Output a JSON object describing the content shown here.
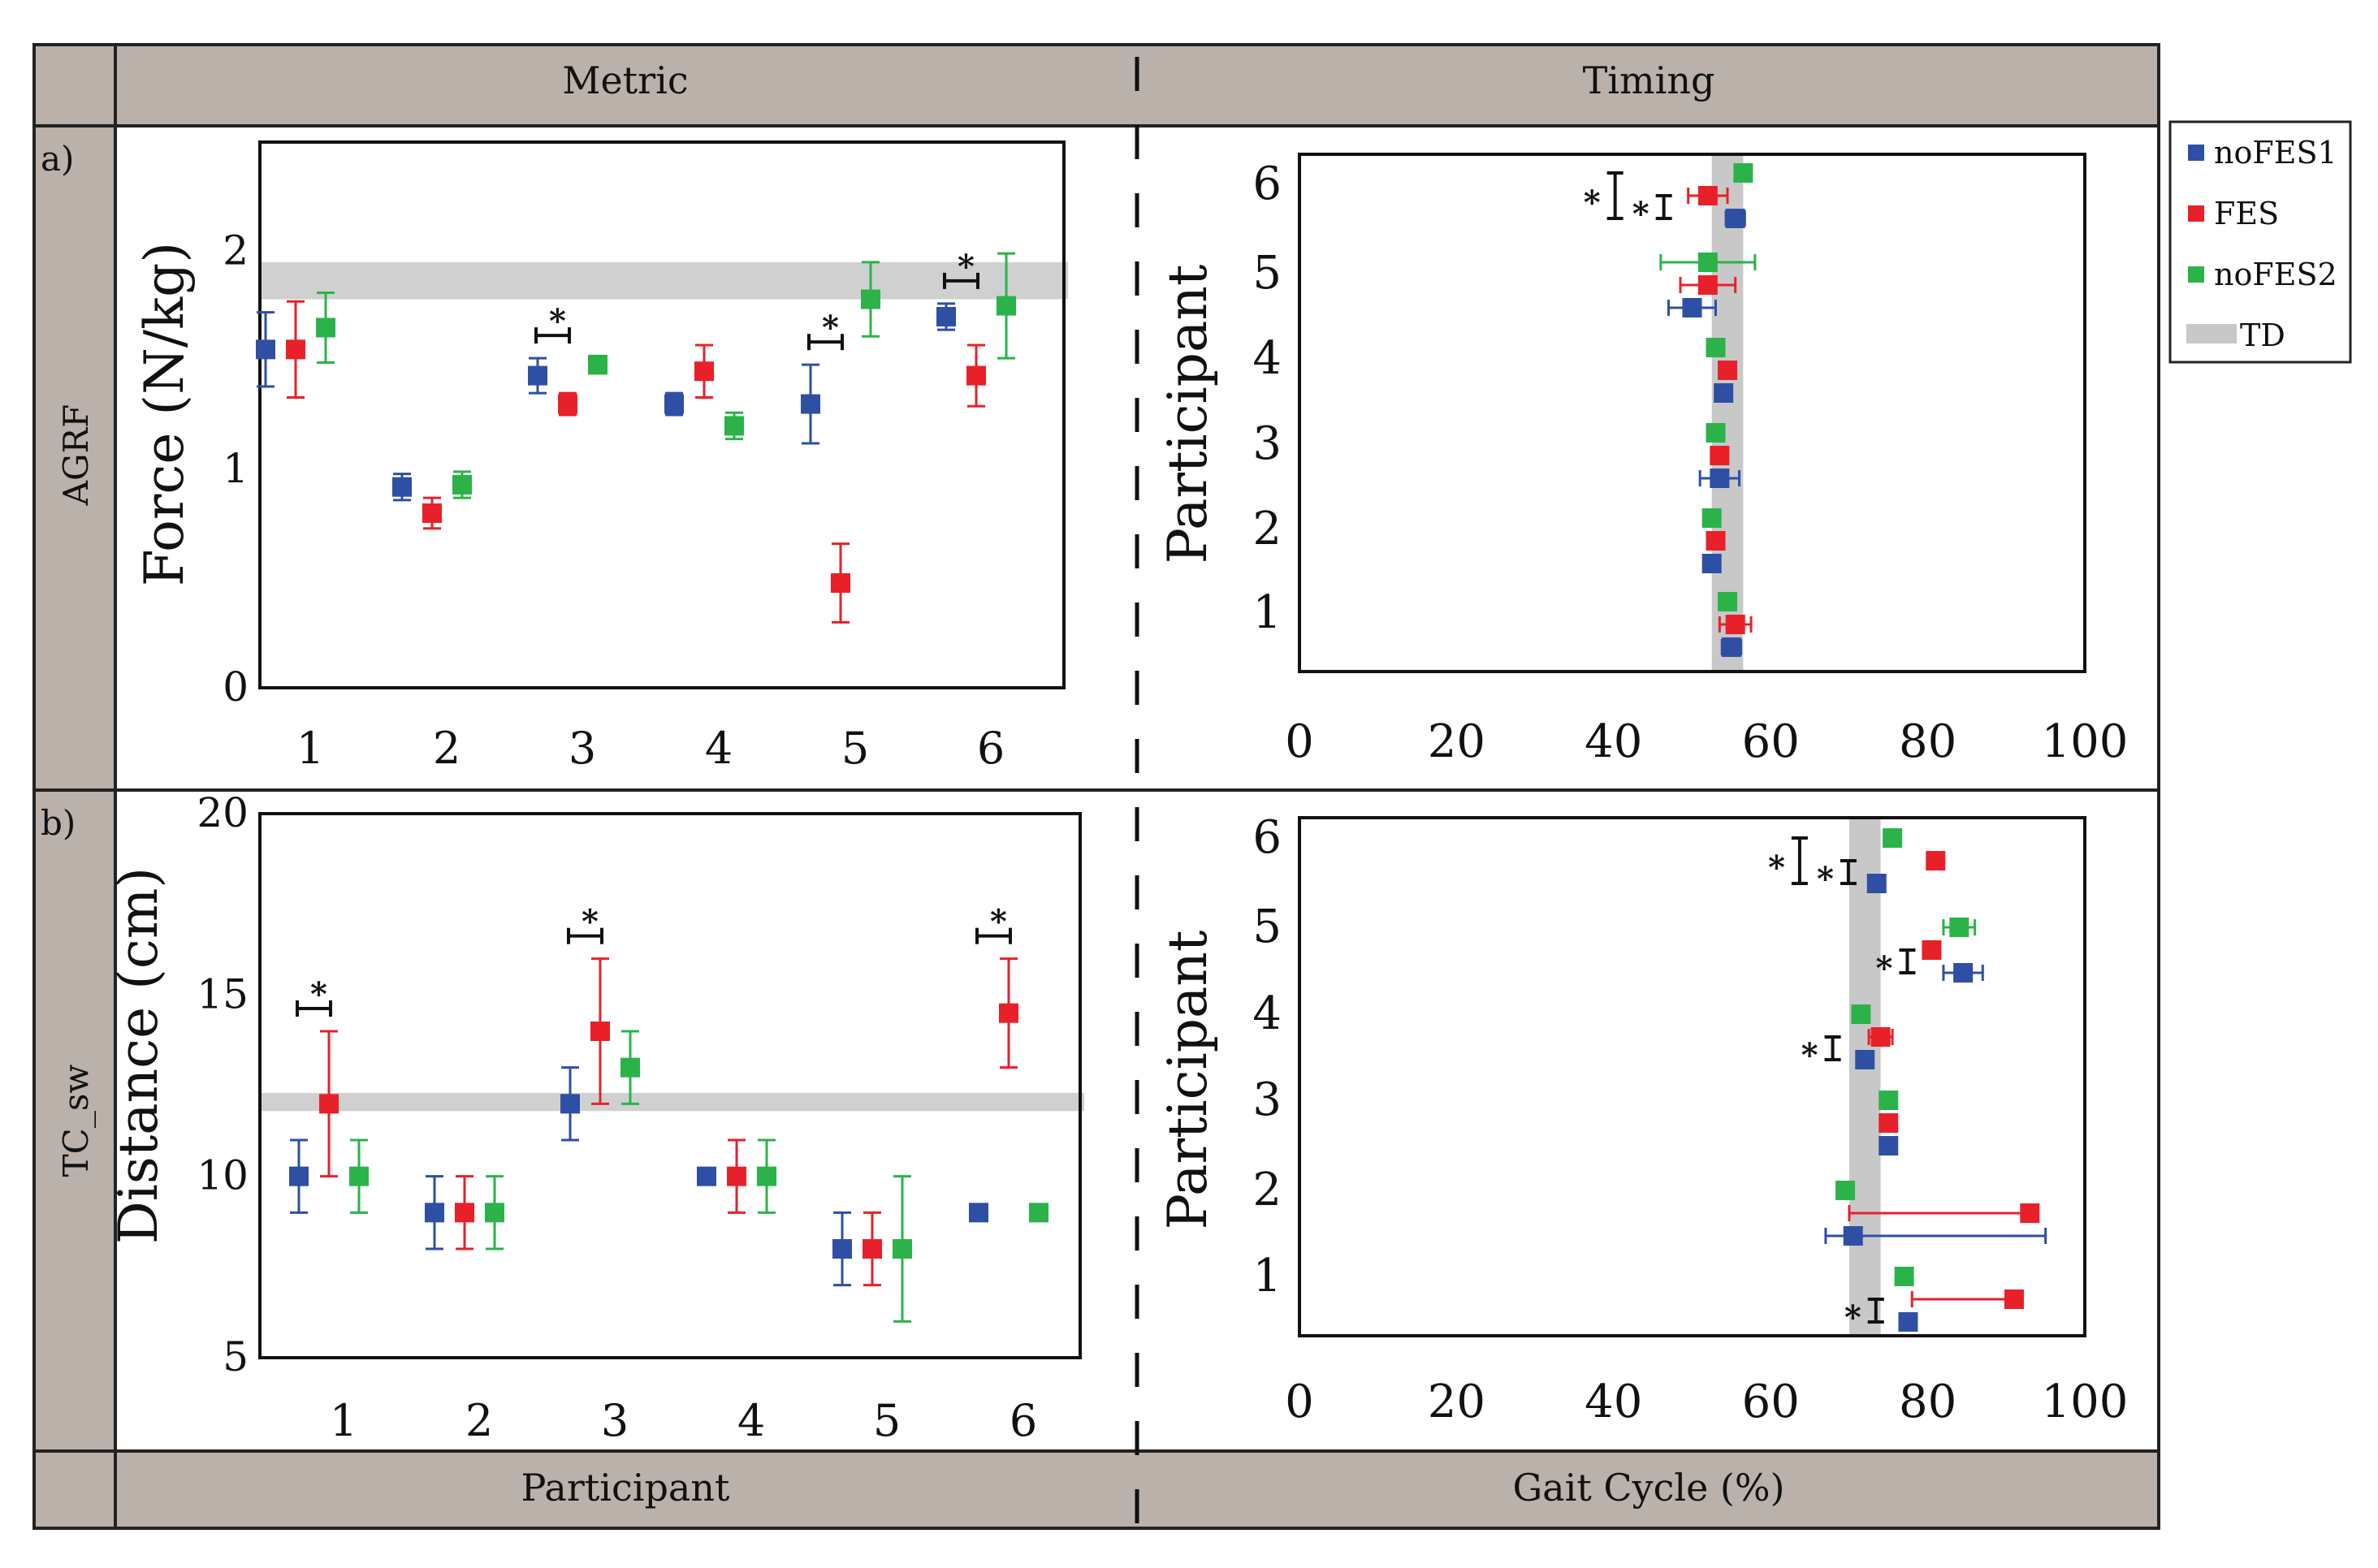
{
  "header": {
    "col1": "Metric",
    "col2": "Timing",
    "bottom1": "Participant",
    "bottom2": "Gait Cycle (%)"
  },
  "rows": {
    "a_label": "a)",
    "a_name": "AGRF",
    "b_label": "b)",
    "b_name": "TC_sw"
  },
  "legend": {
    "items": [
      {
        "name": "noFES1",
        "color": "#2e4fa3"
      },
      {
        "name": "FES",
        "color": "#e8202a"
      },
      {
        "name": "noFES2",
        "color": "#2bb34a"
      },
      {
        "name": "TD",
        "color": "#c8c8c8"
      }
    ]
  },
  "chart_data": [
    {
      "id": "a_metric",
      "type": "scatter",
      "ylabel": "Force (N/kg)",
      "categories": [
        "1",
        "2",
        "3",
        "4",
        "5",
        "6"
      ],
      "ylim": [
        0,
        2.5
      ],
      "yticks": [
        "0",
        "1",
        "2"
      ],
      "td_band": [
        1.78,
        1.95
      ],
      "series": [
        {
          "name": "noFES1",
          "values": [
            1.55,
            0.92,
            1.43,
            1.3,
            1.3,
            1.7
          ],
          "err": [
            0.17,
            0.06,
            0.08,
            0.05,
            0.18,
            0.06
          ]
        },
        {
          "name": "FES",
          "values": [
            1.55,
            0.8,
            1.3,
            1.45,
            0.48,
            1.43
          ],
          "err": [
            0.22,
            0.07,
            0.05,
            0.12,
            0.18,
            0.14
          ]
        },
        {
          "name": "noFES2",
          "values": [
            1.65,
            0.93,
            1.48,
            1.2,
            1.78,
            1.75
          ],
          "err": [
            0.16,
            0.06,
            0.04,
            0.06,
            0.17,
            0.24
          ]
        }
      ],
      "sig": [
        {
          "category": "3",
          "label": "*"
        },
        {
          "category": "5",
          "label": "*"
        },
        {
          "category": "6",
          "label": "*"
        }
      ]
    },
    {
      "id": "a_timing",
      "type": "scatter",
      "xlabel": "",
      "ylabel": "Participant",
      "xlim": [
        0,
        100
      ],
      "xticks": [
        "0",
        "20",
        "40",
        "60",
        "80",
        "100"
      ],
      "categories": [
        "1",
        "2",
        "3",
        "4",
        "5",
        "6"
      ],
      "td_band": [
        52.5,
        56.5
      ],
      "series": [
        {
          "name": "noFES1",
          "values": [
            55,
            52.5,
            53.5,
            54,
            50,
            55.5
          ],
          "err": [
            1.2,
            0.3,
            2.5,
            1.0,
            3.0,
            1.2
          ]
        },
        {
          "name": "FES",
          "values": [
            55.5,
            53,
            53.5,
            54.5,
            52,
            52
          ],
          "err": [
            2.0,
            0.3,
            0.5,
            0.5,
            3.5,
            2.5
          ]
        },
        {
          "name": "noFES2",
          "values": [
            54.5,
            52.5,
            53,
            53,
            52,
            56.5
          ],
          "err": [
            0.5,
            0.3,
            0.5,
            0.5,
            6.0,
            1.0
          ]
        }
      ],
      "sig": [
        {
          "category": "6",
          "label": "*"
        },
        {
          "category": "6",
          "label": "*"
        }
      ]
    },
    {
      "id": "b_metric",
      "type": "scatter",
      "ylabel": "Distance (cm)",
      "categories": [
        "1",
        "2",
        "3",
        "4",
        "5",
        "6"
      ],
      "ylim": [
        5,
        20
      ],
      "yticks": [
        "5",
        "10",
        "15",
        "20"
      ],
      "td_band": [
        11.8,
        12.3
      ],
      "series": [
        {
          "name": "noFES1",
          "values": [
            10,
            9,
            12,
            10,
            8,
            9
          ],
          "err": [
            1.0,
            1.0,
            1.0,
            0,
            1.0,
            0
          ]
        },
        {
          "name": "FES",
          "values": [
            12,
            9,
            14,
            10,
            8,
            14.5
          ],
          "err": [
            2.0,
            1.0,
            2.0,
            1.0,
            1.0,
            1.5
          ]
        },
        {
          "name": "noFES2",
          "values": [
            10,
            9,
            13,
            10,
            8,
            9
          ],
          "err": [
            1.0,
            1.0,
            1.0,
            1.0,
            2.0,
            0
          ]
        }
      ],
      "sig": [
        {
          "category": "1",
          "label": "*"
        },
        {
          "category": "3",
          "label": "*"
        },
        {
          "category": "6",
          "label": "*"
        }
      ]
    },
    {
      "id": "b_timing",
      "type": "scatter",
      "xlabel": "Gait Cycle (%)",
      "ylabel": "Participant",
      "xlim": [
        0,
        100
      ],
      "xticks": [
        "0",
        "20",
        "40",
        "60",
        "80",
        "100"
      ],
      "categories": [
        "1",
        "2",
        "3",
        "4",
        "5",
        "6"
      ],
      "td_band": [
        70,
        74
      ],
      "series": [
        {
          "name": "noFES1",
          "values": [
            77.5,
            70.5,
            75,
            72,
            84.5,
            73.5
          ],
          "err": [
            1.0,
            4.0,
            0.5,
            1.0,
            2.5,
            0.5
          ]
        },
        {
          "name": "FES",
          "values": [
            91,
            93,
            75,
            74,
            80.5,
            81
          ],
          "err": [
            0,
            0,
            0.5,
            1.5,
            0,
            0
          ]
        },
        {
          "name": "noFES2",
          "values": [
            77,
            69.5,
            75,
            71.5,
            84,
            75.5
          ],
          "err": [
            0,
            0,
            0.5,
            0.5,
            2.0,
            1.0
          ]
        }
      ],
      "sig": [
        {
          "category": "1",
          "label": "*"
        },
        {
          "category": "4",
          "label": "*"
        },
        {
          "category": "5",
          "label": "*"
        },
        {
          "category": "6",
          "label": "*"
        },
        {
          "category": "6",
          "label": "*"
        }
      ]
    }
  ]
}
